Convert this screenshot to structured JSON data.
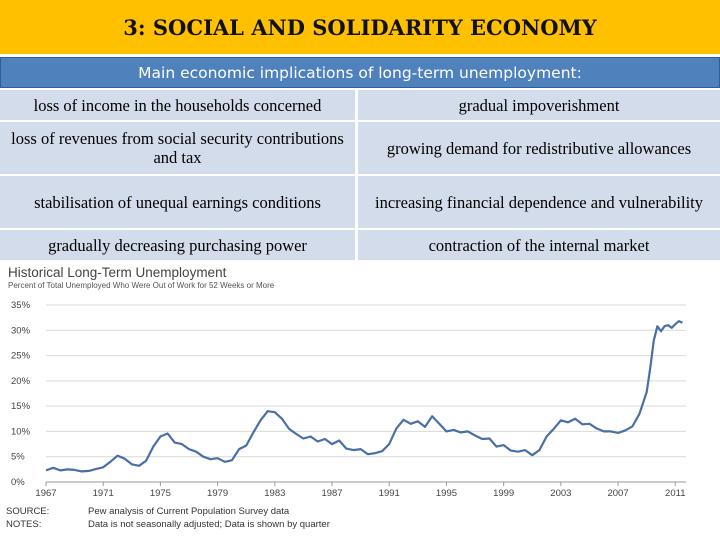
{
  "header": {
    "title": "3: SOCIAL AND SOLIDARITY ECONOMY"
  },
  "subheader": {
    "title": "Main economic implications of long-term unemployment:"
  },
  "implications": [
    {
      "cause": "loss of income in the households concerned",
      "effect": "gradual impoverishment"
    },
    {
      "cause": "loss of revenues from social security contributions and tax",
      "effect": "growing demand for redistributive allowances"
    },
    {
      "cause": "stabilisation of unequal earnings conditions",
      "effect": "increasing financial dependence and vulnerability"
    },
    {
      "cause": "gradually decreasing purchasing power",
      "effect": "contraction of the internal market"
    }
  ],
  "chart_data": {
    "type": "line",
    "title": "Historical Long-Term Unemployment",
    "subtitle": "Percent of Total Unemployed Who Were Out of Work for 52 Weeks or More",
    "ylim": [
      0,
      35
    ],
    "yticks": [
      "0%",
      "5%",
      "10%",
      "15%",
      "20%",
      "25%",
      "30%",
      "35%"
    ],
    "xlim": [
      1967,
      2011.75
    ],
    "xticks": [
      "1967",
      "1971",
      "1975",
      "1979",
      "1983",
      "1987",
      "1991",
      "1995",
      "1999",
      "2003",
      "2007",
      "2011"
    ],
    "grid": true,
    "colors": {
      "line": "#4a6fa5",
      "grid": "#d9d9d9"
    },
    "series": [
      {
        "x": [
          1967,
          1967.5,
          1968,
          1968.5,
          1969,
          1969.5,
          1970,
          1970.5,
          1971,
          1971.5,
          1972,
          1972.5,
          1973,
          1973.5,
          1974,
          1974.5,
          1975,
          1975.5,
          1976,
          1976.5,
          1977,
          1977.5,
          1978,
          1978.5,
          1979,
          1979.5,
          1980,
          1980.5,
          1981,
          1981.5,
          1982,
          1982.5,
          1983,
          1983.5,
          1984,
          1984.5,
          1985,
          1985.5,
          1986,
          1986.5,
          1987,
          1987.5,
          1988,
          1988.5,
          1989,
          1989.5,
          1990,
          1990.5,
          1991,
          1991.5,
          1992,
          1992.5,
          1993,
          1993.5,
          1994,
          1994.5,
          1995,
          1995.5,
          1996,
          1996.5,
          1997,
          1997.5,
          1998,
          1998.5,
          1999,
          1999.5,
          2000,
          2000.5,
          2001,
          2001.5,
          2002,
          2002.5,
          2003,
          2003.5,
          2004,
          2004.5,
          2005,
          2005.5,
          2006,
          2006.5,
          2007,
          2007.5,
          2008,
          2008.5,
          2009,
          2009.25,
          2009.5,
          2009.75,
          2010,
          2010.25,
          2010.5,
          2010.75,
          2011,
          2011.25,
          2011.5
        ],
        "y": [
          2.3,
          2.8,
          2.3,
          2.5,
          2.4,
          2.1,
          2.2,
          2.6,
          2.9,
          4.0,
          5.2,
          4.6,
          3.5,
          3.2,
          4.2,
          7.0,
          9.0,
          9.6,
          7.8,
          7.5,
          6.5,
          6.0,
          5.0,
          4.5,
          4.7,
          4.0,
          4.3,
          6.5,
          7.2,
          9.8,
          12.2,
          14.0,
          13.8,
          12.5,
          10.5,
          9.5,
          8.6,
          9.0,
          8.0,
          8.5,
          7.5,
          8.2,
          6.6,
          6.3,
          6.5,
          5.5,
          5.7,
          6.1,
          7.5,
          10.6,
          12.3,
          11.5,
          12.0,
          10.9,
          13.0,
          11.5,
          10.0,
          10.3,
          9.8,
          10.0,
          9.2,
          8.5,
          8.6,
          7.0,
          7.3,
          6.2,
          6.0,
          6.3,
          5.3,
          6.3,
          9.0,
          10.5,
          12.2,
          11.8,
          12.5,
          11.4,
          11.5,
          10.6,
          10.0,
          10.0,
          9.7,
          10.2,
          11.0,
          13.5,
          17.8,
          22.5,
          28.0,
          30.8,
          29.8,
          30.8,
          31.0,
          30.5,
          31.2,
          31.8,
          31.5
        ]
      }
    ],
    "source_label": "SOURCE:",
    "source_text": "Pew analysis of Current Population Survey data",
    "notes_label": "NOTES:",
    "notes_text": "Data is not seasonally adjusted; Data is shown by quarter"
  }
}
